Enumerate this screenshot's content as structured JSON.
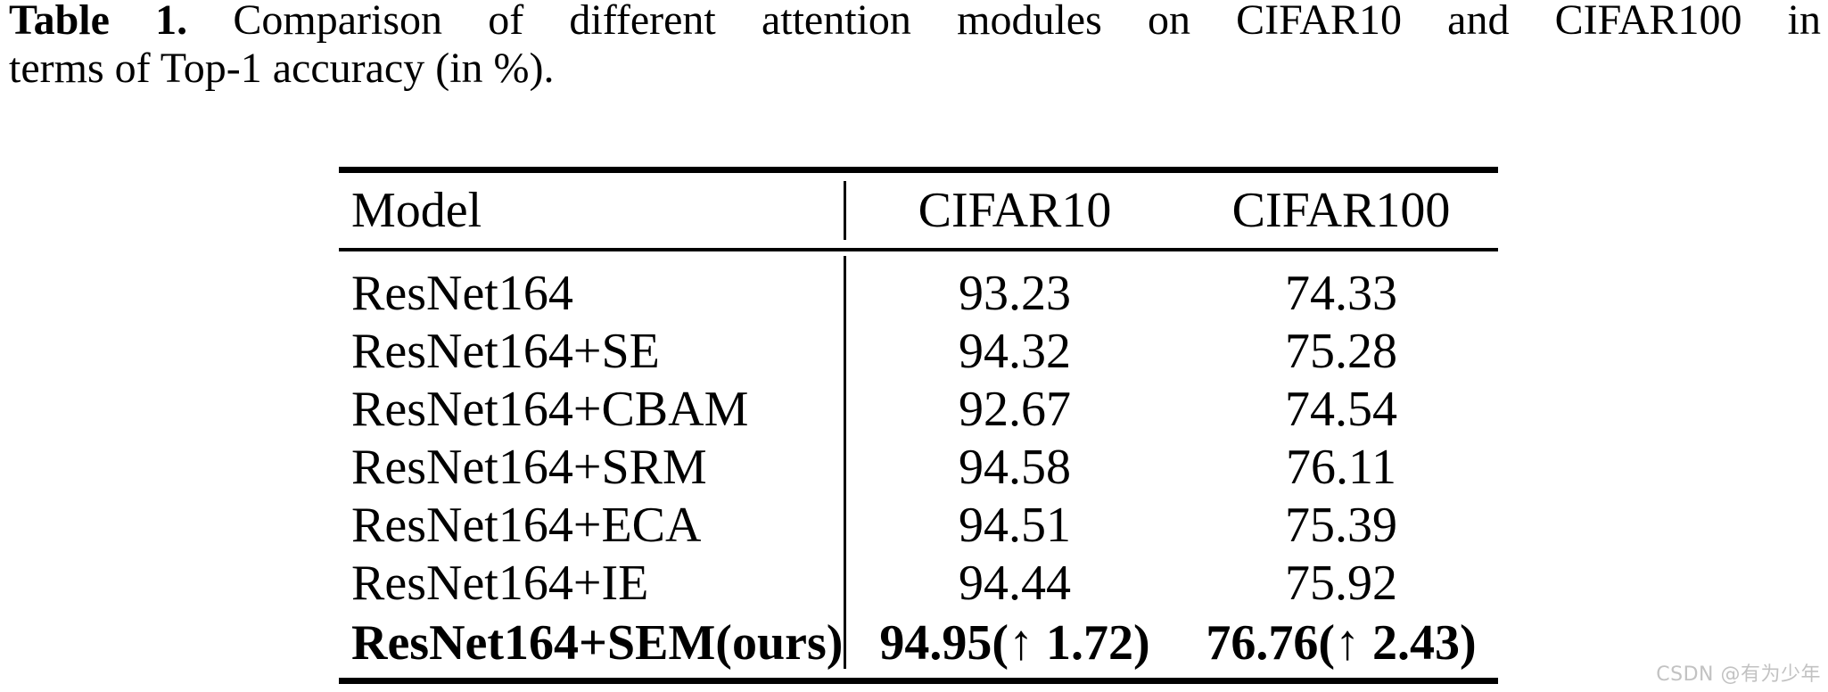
{
  "caption": {
    "label": "Table 1.",
    "line1_rest": "Comparison of different attention modules on CIFAR10 and CIFAR100 in",
    "line2": "terms of Top-1 accuracy (in %)."
  },
  "table": {
    "columns": [
      "Model",
      "CIFAR10",
      "CIFAR100"
    ],
    "rows": [
      {
        "model": "ResNet164",
        "cifar10": "93.23",
        "cifar100": "74.33"
      },
      {
        "model": "ResNet164+SE",
        "cifar10": "94.32",
        "cifar100": "75.28"
      },
      {
        "model": "ResNet164+CBAM",
        "cifar10": "92.67",
        "cifar100": "74.54"
      },
      {
        "model": "ResNet164+SRM",
        "cifar10": "94.58",
        "cifar100": "76.11"
      },
      {
        "model": "ResNet164+ECA",
        "cifar10": "94.51",
        "cifar100": "75.39"
      },
      {
        "model": "ResNet164+IE",
        "cifar10": "94.44",
        "cifar100": "75.92"
      },
      {
        "model": "ResNet164+SEM(ours)",
        "cifar10": "94.95(↑ 1.72)",
        "cifar100": "76.76(↑ 2.43)"
      }
    ],
    "highlight_row_index": 6
  },
  "watermark": {
    "text": "CSDN @有为少年"
  },
  "colors": {
    "text": "#000000",
    "rule": "#000000",
    "background": "#ffffff",
    "watermark": "#c2c2c2"
  }
}
